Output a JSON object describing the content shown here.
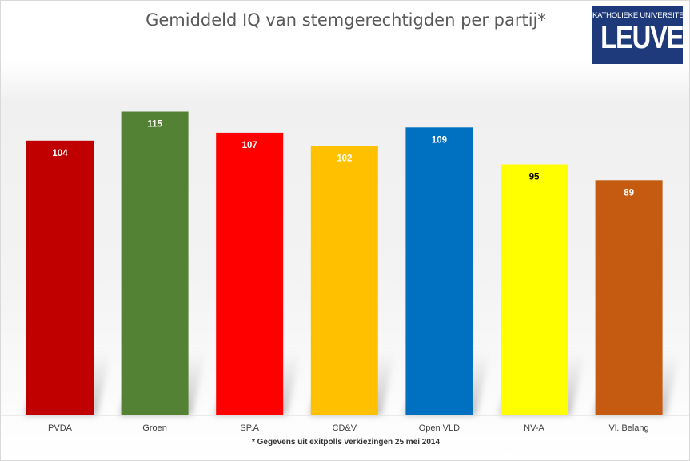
{
  "chart_data": {
    "type": "bar",
    "title": "Gemiddeld IQ van stemgerechtigden per partij*",
    "categories": [
      "PVDA",
      "Groen",
      "SP.A",
      "CD&V",
      "Open VLD",
      "NV-A",
      "Vl. Belang"
    ],
    "values": [
      104,
      115,
      107,
      102,
      109,
      95,
      89
    ],
    "colors": [
      "#c00000",
      "#548235",
      "#ff0000",
      "#ffc000",
      "#0070c0",
      "#ffff00",
      "#c55a11"
    ],
    "label_colors": [
      "#ffffff",
      "#ffffff",
      "#ffffff",
      "#ffffff",
      "#ffffff",
      "#000000",
      "#ffffff"
    ],
    "ylim": [
      0,
      125
    ],
    "grid": false,
    "footnote": "* Gegevens uit exitpolls verkiezingen 25 mei 2014"
  },
  "logo": {
    "top_text": "KATHOLIEKE UNIVERSITEIT",
    "main_text": "LEUVEN",
    "background": "#1e3a7b"
  }
}
